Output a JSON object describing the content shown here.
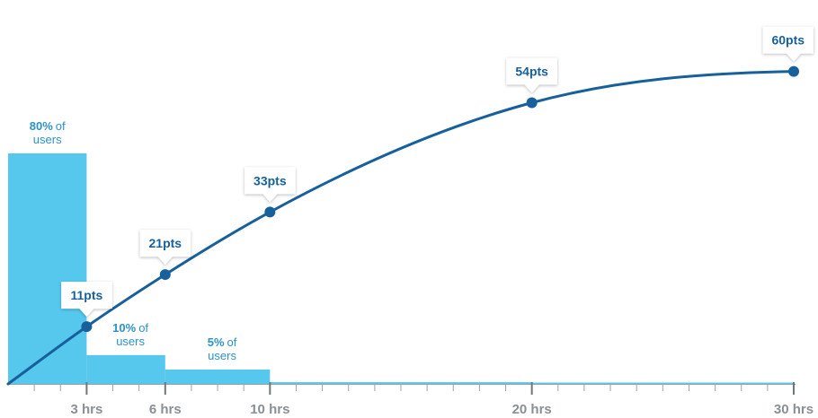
{
  "colors": {
    "bar": "#56c8ee",
    "curve": "#17609b",
    "point": "#17609b",
    "axis": "#9aa3aa",
    "tick_label": "#8a8f94",
    "user_label": "#2a93c8",
    "callout_fill": "#ffffff"
  },
  "chart_data": {
    "type": "line",
    "xlim": [
      0,
      30
    ],
    "x_tick_labels": [
      "3 hrs",
      "6 hrs",
      "10 hrs",
      "20 hrs",
      "30 hrs"
    ],
    "x_tick_values": [
      3,
      6,
      10,
      20,
      30
    ],
    "minor_tick_step": 1,
    "ylim": [
      0,
      62
    ],
    "series": [
      {
        "name": "",
        "x": [
          3,
          6,
          10,
          20,
          30
        ],
        "values": [
          11,
          21,
          33,
          54,
          60
        ],
        "labels": [
          "11pts",
          "21pts",
          "33pts",
          "54pts",
          "60pts"
        ]
      }
    ],
    "user_bars": [
      {
        "x_start": 0,
        "x_end": 3,
        "percent_label": "80%",
        "suffix": "of",
        "second_line": "users",
        "height_value": 80
      },
      {
        "x_start": 3,
        "x_end": 6,
        "percent_label": "10%",
        "suffix": "of",
        "second_line": "users",
        "height_value": 10
      },
      {
        "x_start": 6,
        "x_end": 10,
        "percent_label": "5%",
        "suffix": "of",
        "second_line": "users",
        "height_value": 5
      },
      {
        "x_start": 10,
        "x_end": 20,
        "percent_label": "",
        "suffix": "",
        "second_line": "",
        "height_value": 0.6
      },
      {
        "x_start": 20,
        "x_end": 30,
        "percent_label": "",
        "suffix": "",
        "second_line": "",
        "height_value": 0.3
      }
    ]
  }
}
